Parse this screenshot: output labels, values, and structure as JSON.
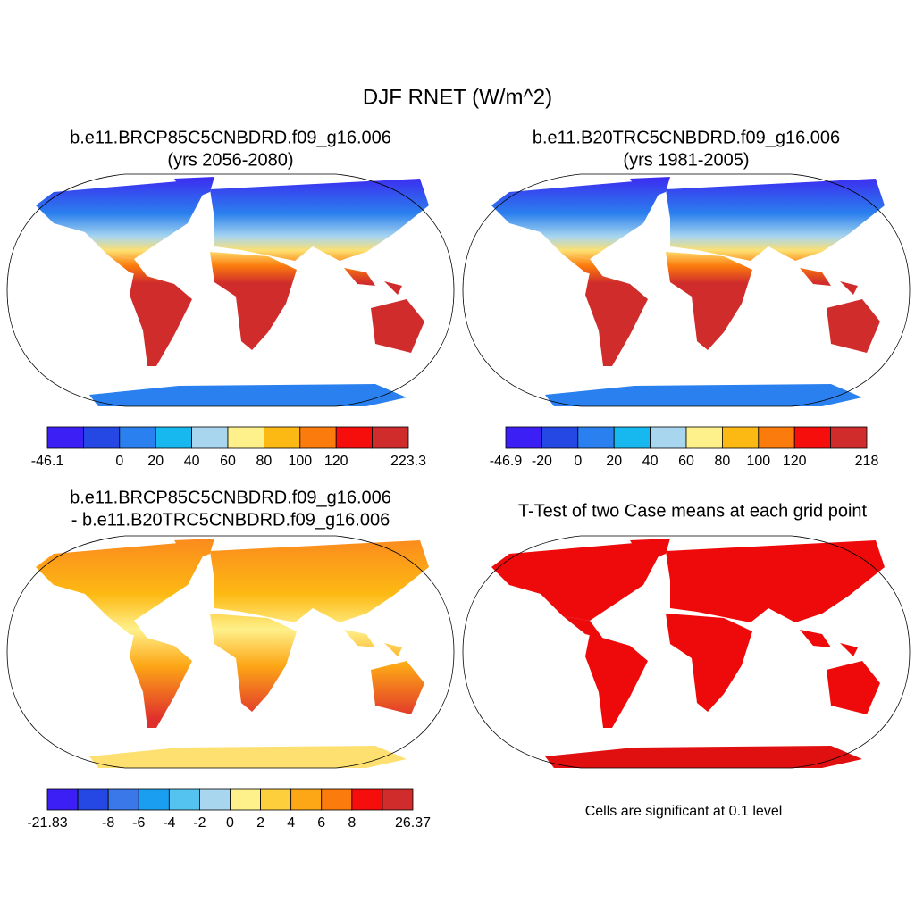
{
  "title": "DJF RNET (W/m^2)",
  "panels": [
    {
      "title": [
        "b.e11.BRCP85C5CNBDRD.f09_g16.006",
        "(yrs 2056-2080)"
      ],
      "colorbar": {
        "colors": [
          "#3c1ff5",
          "#2547e4",
          "#2a80ee",
          "#17b8f0",
          "#a8d6ef",
          "#fef08a",
          "#fdb913",
          "#fb7c0d",
          "#f50e0c",
          "#d02c2c"
        ],
        "labels": [
          -46.1,
          null,
          0,
          20,
          40,
          60,
          80,
          100,
          120,
          null,
          223.3
        ]
      }
    },
    {
      "title": [
        "b.e11.B20TRC5CNBDRD.f09_g16.006",
        "(yrs 1981-2005)"
      ],
      "colorbar": {
        "colors": [
          "#3c1ff5",
          "#2547e4",
          "#2a80ee",
          "#17b8f0",
          "#a8d6ef",
          "#fef08a",
          "#fdb913",
          "#fb7c0d",
          "#f50e0c",
          "#d02c2c"
        ],
        "labels": [
          -46.9,
          -20,
          0,
          20,
          40,
          60,
          80,
          100,
          120,
          null,
          218
        ]
      }
    },
    {
      "title": [
        "b.e11.BRCP85C5CNBDRD.f09_g16.006",
        "- b.e11.B20TRC5CNBDRD.f09_g16.006"
      ],
      "colorbar": {
        "colors": [
          "#3c1ff5",
          "#2547e4",
          "#3a78ea",
          "#1a9ff0",
          "#55c3f0",
          "#a8d6ef",
          "#fef08a",
          "#fdcf3d",
          "#fda716",
          "#fb7c0d",
          "#f50e0c",
          "#d02c2c"
        ],
        "labels": [
          -21.83,
          null,
          -8,
          -6,
          -4,
          -2,
          0,
          2,
          4,
          6,
          8,
          null,
          26.37
        ]
      }
    },
    {
      "title": [
        "T-Test of two Case means at each grid point"
      ],
      "note": "Cells are significant at 0.1 level"
    }
  ]
}
